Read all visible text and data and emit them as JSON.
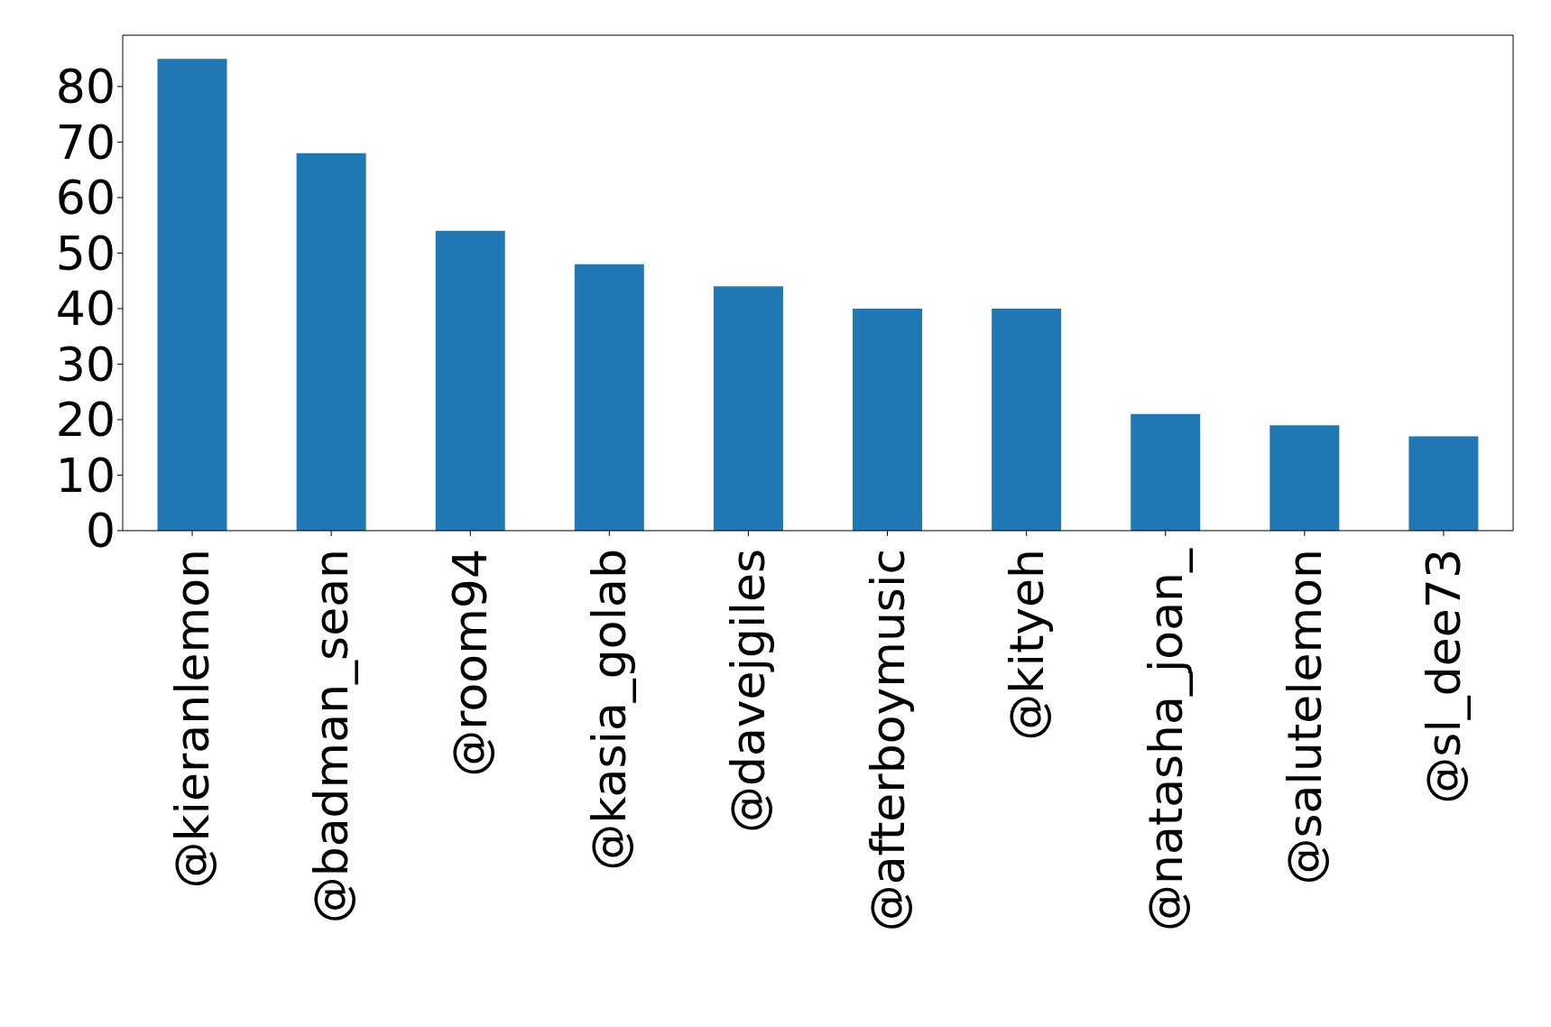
{
  "chart_data": {
    "type": "bar",
    "categories": [
      "@kieranlemon",
      "@badman_sean",
      "@room94",
      "@kasia_golab",
      "@davejgiles",
      "@afterboymusic",
      "@kityeh",
      "@natasha_joan_",
      "@salutelemon",
      "@sl_dee73"
    ],
    "values": [
      85,
      68,
      54,
      48,
      44,
      40,
      40,
      21,
      19,
      17
    ],
    "color": "#1f77b4",
    "ylim": [
      0,
      89.25
    ],
    "yticks": [
      0,
      10,
      20,
      30,
      40,
      50,
      60,
      70,
      80
    ],
    "grid": false,
    "legend": false
  }
}
